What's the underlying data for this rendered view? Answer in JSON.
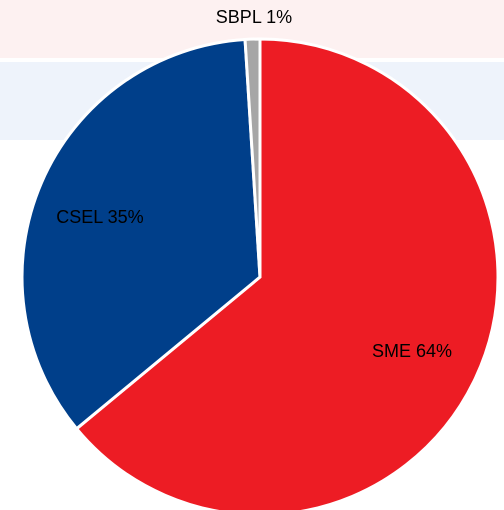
{
  "chart_data": {
    "type": "pie",
    "values": [
      64,
      35,
      1
    ],
    "value_labels": [
      "SME 64%",
      "CSEL 35%",
      "SBPL 1%"
    ],
    "colors": [
      "#ed1c24",
      "#003f8a",
      "#a6a6a6"
    ]
  }
}
